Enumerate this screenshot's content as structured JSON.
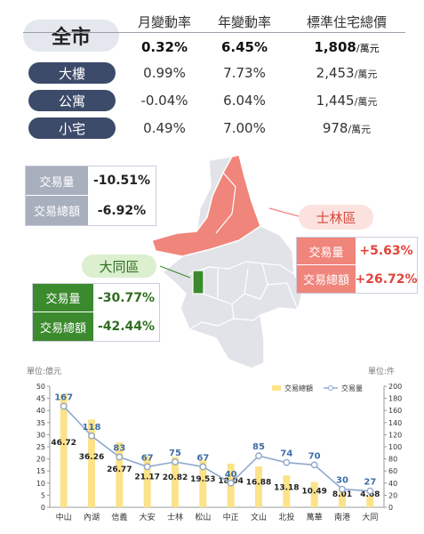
{
  "summary": {
    "city_label": "全市",
    "headers": [
      "月變動率",
      "年變動率",
      "標準住宅總價"
    ],
    "city_row": {
      "monthly": "0.32%",
      "yearly": "6.45%",
      "price": "1,808",
      "price_unit": "/萬元"
    },
    "types": [
      {
        "label": "大樓",
        "monthly": "0.99%",
        "yearly": "7.73%",
        "price": "2,453",
        "price_unit": "/萬元"
      },
      {
        "label": "公寓",
        "monthly": "-0.04%",
        "yearly": "6.04%",
        "price": "1,445",
        "price_unit": "/萬元"
      },
      {
        "label": "小宅",
        "monthly": "0.49%",
        "yearly": "7.00%",
        "price": "978",
        "price_unit": "/萬元"
      }
    ]
  },
  "city_stats": {
    "volume_label": "交易量",
    "volume_value": "-10.51%",
    "amount_label": "交易總額",
    "amount_value": "-6.92%"
  },
  "shilin": {
    "name": "士林區",
    "volume_label": "交易量",
    "volume_value": "+5.63%",
    "amount_label": "交易總額",
    "amount_value": "+26.72%"
  },
  "datong": {
    "name": "大同區",
    "volume_label": "交易量",
    "volume_value": "-30.77%",
    "amount_label": "交易總額",
    "amount_value": "-42.44%"
  },
  "colors": {
    "navy": "#3d4b6a",
    "shilin": "#f0857c",
    "datong": "#3c8a2e",
    "datong_tag": "#dcefcf",
    "shilin_tag": "#fbe2df",
    "gray_box": "#a8afbd",
    "bar": "#fce38a",
    "line": "#8fa8cc"
  },
  "chart_data": {
    "type": "bar",
    "left_unit_label": "單位:億元",
    "right_unit_label": "單位:件",
    "categories": [
      "中山",
      "內湖",
      "信義",
      "大安",
      "士林",
      "松山",
      "中正",
      "文山",
      "北投",
      "萬華",
      "南港",
      "大同"
    ],
    "series": [
      {
        "name": "交易總額",
        "type": "bar",
        "axis": "left",
        "values": [
          46.72,
          36.26,
          26.77,
          21.17,
          20.82,
          19.53,
          18.04,
          16.88,
          13.18,
          10.49,
          8.01,
          4.68
        ]
      },
      {
        "name": "交易量",
        "type": "line",
        "axis": "right",
        "values": [
          167,
          118,
          83,
          67,
          75,
          67,
          40,
          85,
          74,
          70,
          30,
          27
        ]
      }
    ],
    "y_left": {
      "min": 0,
      "max": 50,
      "ticks": [
        0,
        5,
        10,
        15,
        20,
        25,
        30,
        35,
        40,
        45,
        50
      ]
    },
    "y_right": {
      "min": 0,
      "max": 200,
      "ticks": [
        0,
        20,
        40,
        60,
        80,
        100,
        120,
        140,
        160,
        180,
        200
      ]
    },
    "legend_position": "top-right",
    "grid": false
  }
}
